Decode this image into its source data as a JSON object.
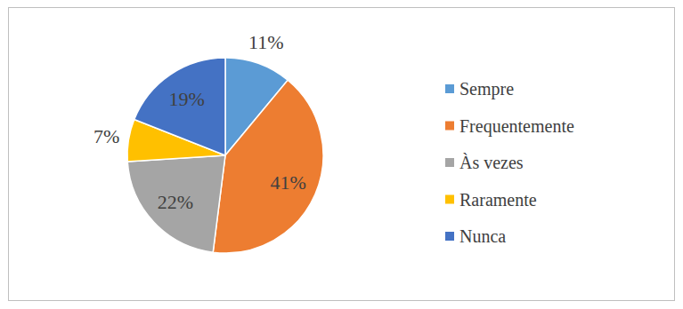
{
  "chart_data": {
    "type": "pie",
    "categories": [
      "Sempre",
      "Frequentemente",
      "Às vezes",
      "Raramente",
      "Nunca"
    ],
    "values": [
      11,
      41,
      22,
      7,
      19
    ],
    "value_labels": [
      "11%",
      "41%",
      "22%",
      "7%",
      "19%"
    ],
    "colors": [
      "#5b9bd5",
      "#ed7d31",
      "#a5a5a5",
      "#ffc000",
      "#4472c4"
    ],
    "data_labels": true,
    "legend": "right"
  }
}
